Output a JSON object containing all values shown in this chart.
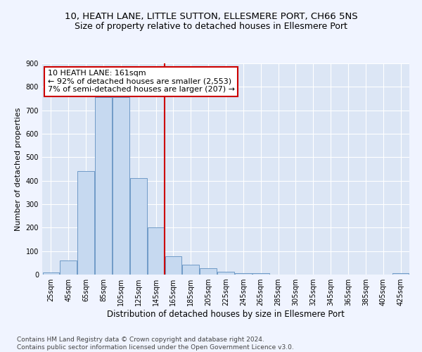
{
  "title": "10, HEATH LANE, LITTLE SUTTON, ELLESMERE PORT, CH66 5NS",
  "subtitle": "Size of property relative to detached houses in Ellesmere Port",
  "xlabel": "Distribution of detached houses by size in Ellesmere Port",
  "ylabel": "Number of detached properties",
  "bin_labels": [
    "25sqm",
    "45sqm",
    "65sqm",
    "85sqm",
    "105sqm",
    "125sqm",
    "145sqm",
    "165sqm",
    "185sqm",
    "205sqm",
    "225sqm",
    "245sqm",
    "265sqm",
    "285sqm",
    "305sqm",
    "325sqm",
    "345sqm",
    "365sqm",
    "385sqm",
    "405sqm",
    "425sqm"
  ],
  "bar_values": [
    10,
    60,
    440,
    755,
    755,
    410,
    200,
    78,
    42,
    27,
    12,
    5,
    5,
    0,
    0,
    0,
    0,
    0,
    0,
    0,
    7
  ],
  "bar_color": "#c6d9f0",
  "bar_edge_color": "#6090c0",
  "background_color": "#dce6f5",
  "grid_color": "#ffffff",
  "vline_color": "#cc0000",
  "annotation_text": "10 HEATH LANE: 161sqm\n← 92% of detached houses are smaller (2,553)\n7% of semi-detached houses are larger (207) →",
  "annotation_box_color": "#ffffff",
  "annotation_box_edge_color": "#cc0000",
  "footnote": "Contains HM Land Registry data © Crown copyright and database right 2024.\nContains public sector information licensed under the Open Government Licence v3.0.",
  "ylim": [
    0,
    900
  ],
  "yticks": [
    0,
    100,
    200,
    300,
    400,
    500,
    600,
    700,
    800,
    900
  ],
  "title_fontsize": 9.5,
  "subtitle_fontsize": 9,
  "xlabel_fontsize": 8.5,
  "ylabel_fontsize": 8,
  "tick_fontsize": 7,
  "annotation_fontsize": 8,
  "footnote_fontsize": 6.5
}
